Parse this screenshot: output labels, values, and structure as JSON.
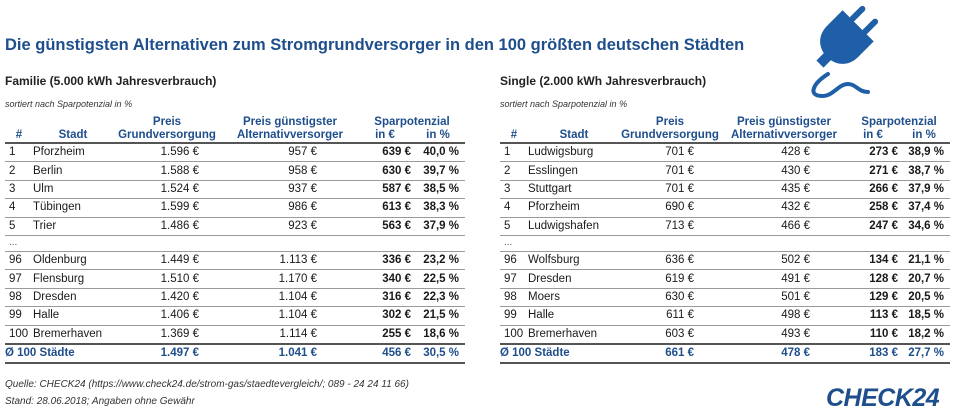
{
  "title": "Die günstigsten Alternativen zum Stromgrundversorger in den 100 größten deutschen Städten",
  "logo": "CHECK24",
  "icon": "power-plug-icon",
  "accent_color": "#1e4e8c",
  "sort_note": "sortiert nach Sparpotenzial in %",
  "headers": {
    "num": "#",
    "city": "Stadt",
    "price": [
      "Preis",
      "Grundversorgung"
    ],
    "alt": [
      "Preis günstigster",
      "Alternativversorger"
    ],
    "savings": "Sparpotenzial",
    "eur": "in €",
    "pct": "in %"
  },
  "ellipsis": "...",
  "tables": [
    {
      "subtitle": "Familie (5.000 kWh Jahresverbrauch)",
      "rows_top": [
        {
          "num": "1",
          "city": "Pforzheim",
          "price": "1.596 €",
          "alt": "957 €",
          "eur": "639 €",
          "pct": "40,0 %"
        },
        {
          "num": "2",
          "city": "Berlin",
          "price": "1.588 €",
          "alt": "958 €",
          "eur": "630 €",
          "pct": "39,7 %"
        },
        {
          "num": "3",
          "city": "Ulm",
          "price": "1.524 €",
          "alt": "937 €",
          "eur": "587 €",
          "pct": "38,5 %"
        },
        {
          "num": "4",
          "city": "Tübingen",
          "price": "1.599 €",
          "alt": "986 €",
          "eur": "613 €",
          "pct": "38,3 %"
        },
        {
          "num": "5",
          "city": "Trier",
          "price": "1.486 €",
          "alt": "923 €",
          "eur": "563 €",
          "pct": "37,9 %"
        }
      ],
      "rows_bottom": [
        {
          "num": "96",
          "city": "Oldenburg",
          "price": "1.449 €",
          "alt": "1.113 €",
          "eur": "336 €",
          "pct": "23,2 %"
        },
        {
          "num": "97",
          "city": "Flensburg",
          "price": "1.510 €",
          "alt": "1.170 €",
          "eur": "340 €",
          "pct": "22,5 %"
        },
        {
          "num": "98",
          "city": "Dresden",
          "price": "1.420 €",
          "alt": "1.104 €",
          "eur": "316 €",
          "pct": "22,3 %"
        },
        {
          "num": "99",
          "city": "Halle",
          "price": "1.406 €",
          "alt": "1.104 €",
          "eur": "302 €",
          "pct": "21,5 %"
        },
        {
          "num": "100",
          "city": "Bremerhaven",
          "price": "1.369 €",
          "alt": "1.114 €",
          "eur": "255 €",
          "pct": "18,6 %"
        }
      ],
      "avg": {
        "label": "Ø 100 Städte",
        "price": "1.497 €",
        "alt": "1.041 €",
        "eur": "456 €",
        "pct": "30,5 %"
      }
    },
    {
      "subtitle": "Single (2.000 kWh Jahresverbrauch)",
      "rows_top": [
        {
          "num": "1",
          "city": "Ludwigsburg",
          "price": "701 €",
          "alt": "428 €",
          "eur": "273 €",
          "pct": "38,9 %"
        },
        {
          "num": "2",
          "city": "Esslingen",
          "price": "701 €",
          "alt": "430 €",
          "eur": "271 €",
          "pct": "38,7 %"
        },
        {
          "num": "3",
          "city": "Stuttgart",
          "price": "701 €",
          "alt": "435 €",
          "eur": "266 €",
          "pct": "37,9 %"
        },
        {
          "num": "4",
          "city": "Pforzheim",
          "price": "690 €",
          "alt": "432 €",
          "eur": "258 €",
          "pct": "37,4 %"
        },
        {
          "num": "5",
          "city": "Ludwigshafen",
          "price": "713 €",
          "alt": "466 €",
          "eur": "247 €",
          "pct": "34,6 %"
        }
      ],
      "rows_bottom": [
        {
          "num": "96",
          "city": "Wolfsburg",
          "price": "636 €",
          "alt": "502 €",
          "eur": "134 €",
          "pct": "21,1 %"
        },
        {
          "num": "97",
          "city": "Dresden",
          "price": "619 €",
          "alt": "491 €",
          "eur": "128 €",
          "pct": "20,7 %"
        },
        {
          "num": "98",
          "city": "Moers",
          "price": "630 €",
          "alt": "501 €",
          "eur": "129 €",
          "pct": "20,5 %"
        },
        {
          "num": "99",
          "city": "Halle",
          "price": "611 €",
          "alt": "498 €",
          "eur": "113 €",
          "pct": "18,5 %"
        },
        {
          "num": "100",
          "city": "Bremerhaven",
          "price": "603 €",
          "alt": "493 €",
          "eur": "110 €",
          "pct": "18,2 %"
        }
      ],
      "avg": {
        "label": "Ø 100 Städte",
        "price": "661 €",
        "alt": "478 €",
        "eur": "183 €",
        "pct": "27,7 %"
      }
    }
  ],
  "footer": {
    "source": "Quelle: CHECK24 (https://www.check24.de/strom-gas/staedtevergleich/; 089 - 24 24 11 66)",
    "date": "Stand: 28.06.2018; Angaben ohne Gewähr"
  }
}
